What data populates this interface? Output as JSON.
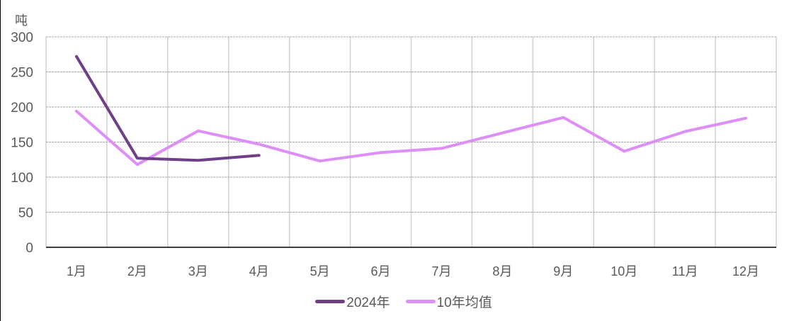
{
  "chart_data": {
    "type": "line",
    "title": "",
    "xlabel": "",
    "ylabel": "吨",
    "ylim": [
      0,
      300
    ],
    "yticks": [
      0,
      50,
      100,
      150,
      200,
      250,
      300
    ],
    "grid": true,
    "legend_position": "bottom",
    "categories": [
      "1月",
      "2月",
      "3月",
      "4月",
      "5月",
      "6月",
      "7月",
      "8月",
      "9月",
      "10月",
      "11月",
      "12月"
    ],
    "series": [
      {
        "name": "2024年",
        "color": "#6f3f87",
        "values": [
          272,
          127,
          124,
          131,
          null,
          null,
          null,
          null,
          null,
          null,
          null,
          null
        ]
      },
      {
        "name": "10年均值",
        "color": "#dd8ef7",
        "values": [
          194,
          118,
          166,
          147,
          123,
          135,
          141,
          163,
          185,
          137,
          165,
          184
        ]
      }
    ]
  },
  "legend": {
    "items": [
      {
        "label": "2024年",
        "color": "#6f3f87"
      },
      {
        "label": "10年均值",
        "color": "#dd8ef7"
      }
    ]
  }
}
